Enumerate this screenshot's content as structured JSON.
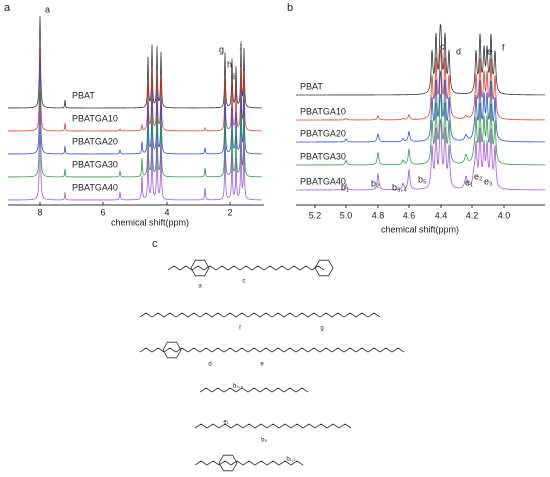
{
  "panel_a": {
    "label": "a",
    "peak_labels": [
      "a",
      "g",
      "h",
      "i",
      "j"
    ],
    "series_labels": [
      "PBAT",
      "PBATGA10",
      "PBATGA20",
      "PBATGA30",
      "PBATGA40"
    ],
    "colors": [
      "#333333",
      "#d9452f",
      "#2f4fd9",
      "#2f9a4a",
      "#a45ad8"
    ],
    "x_ticks": [
      "8",
      "6",
      "4",
      "2"
    ],
    "x_label": "chemical shift(ppm)"
  },
  "panel_b": {
    "label": "b",
    "peak_labels": [
      "c",
      "d",
      "e",
      "f"
    ],
    "series_labels": [
      "PBAT",
      "PBATGA10",
      "PBATGA20",
      "PBATGA30",
      "PBATGA40"
    ],
    "colors": [
      "#333333",
      "#d9452f",
      "#2f4fd9",
      "#2f9a4a",
      "#a45ad8"
    ],
    "minor_labels": [
      "b₁",
      "b₂",
      "b₃,₄",
      "b₅",
      "e₁",
      "e₂",
      "e₃"
    ],
    "x_ticks": [
      "5.2",
      "5.0",
      "4.8",
      "4.6",
      "4.4",
      "4.2",
      "4.0"
    ],
    "x_label": "chemical shift(ppm)"
  },
  "panel_c": {
    "label": "c",
    "structure_labels": [
      "a",
      "c",
      "f",
      "g",
      "d",
      "e",
      "b₃,₄",
      "e₁",
      "b₅",
      "b₁,₂"
    ]
  }
}
